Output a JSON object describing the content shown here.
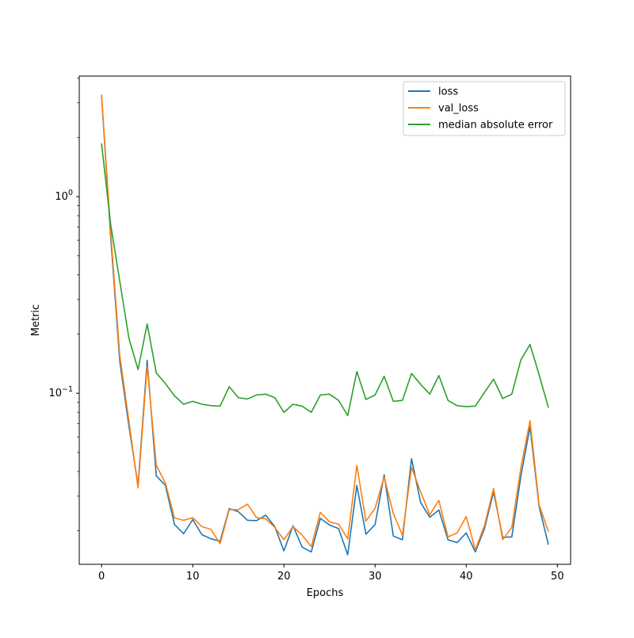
{
  "chart_data": {
    "type": "line",
    "xlabel": "Epochs",
    "ylabel": "Metric",
    "y_scale": "log",
    "xlim": [
      -2.45,
      51.45
    ],
    "ylim": [
      0.0135,
      4.1
    ],
    "x_ticks": [
      0,
      10,
      20,
      30,
      40,
      50
    ],
    "y_ticks": [
      {
        "value": 0.1,
        "base": "10",
        "exponent": "−1"
      },
      {
        "value": 1,
        "base": "10",
        "exponent": "0"
      }
    ],
    "grid": false,
    "legend_position": "top-right",
    "x": [
      0,
      1,
      2,
      3,
      4,
      5,
      6,
      7,
      8,
      9,
      10,
      11,
      12,
      13,
      14,
      15,
      16,
      17,
      18,
      19,
      20,
      21,
      22,
      23,
      24,
      25,
      26,
      27,
      28,
      29,
      30,
      31,
      32,
      33,
      34,
      35,
      36,
      37,
      38,
      39,
      40,
      41,
      42,
      43,
      44,
      45,
      46,
      47,
      48,
      49
    ],
    "series": [
      {
        "name": "loss",
        "color": "#1f77b4",
        "values": [
          3.25,
          0.62,
          0.145,
          0.068,
          0.034,
          0.147,
          0.038,
          0.034,
          0.0215,
          0.0193,
          0.0228,
          0.0191,
          0.0182,
          0.0177,
          0.0259,
          0.025,
          0.0226,
          0.0225,
          0.024,
          0.021,
          0.0158,
          0.0212,
          0.0165,
          0.0156,
          0.0231,
          0.0214,
          0.0205,
          0.0151,
          0.034,
          0.0192,
          0.0215,
          0.0385,
          0.0188,
          0.018,
          0.0465,
          0.0278,
          0.0234,
          0.0255,
          0.018,
          0.0174,
          0.0195,
          0.0156,
          0.0205,
          0.0315,
          0.0185,
          0.0186,
          0.038,
          0.0675,
          0.0265,
          0.0171
        ]
      },
      {
        "name": "val_loss",
        "color": "#ff7f0e",
        "values": [
          3.28,
          0.66,
          0.155,
          0.072,
          0.033,
          0.138,
          0.043,
          0.035,
          0.0232,
          0.0226,
          0.0233,
          0.021,
          0.0203,
          0.0172,
          0.0256,
          0.0256,
          0.0273,
          0.0233,
          0.023,
          0.0208,
          0.018,
          0.021,
          0.019,
          0.0166,
          0.0248,
          0.0222,
          0.0216,
          0.0182,
          0.043,
          0.0224,
          0.026,
          0.0375,
          0.0245,
          0.019,
          0.042,
          0.0315,
          0.0241,
          0.0285,
          0.0186,
          0.0195,
          0.0236,
          0.016,
          0.0212,
          0.0328,
          0.018,
          0.0208,
          0.042,
          0.0725,
          0.027,
          0.0199
        ]
      },
      {
        "name": "median absolute error",
        "color": "#2ca02c",
        "values": [
          1.85,
          0.72,
          0.37,
          0.19,
          0.132,
          0.225,
          0.127,
          0.112,
          0.097,
          0.088,
          0.091,
          0.088,
          0.0865,
          0.086,
          0.108,
          0.095,
          0.0935,
          0.098,
          0.099,
          0.095,
          0.08,
          0.088,
          0.086,
          0.08,
          0.098,
          0.099,
          0.092,
          0.077,
          0.129,
          0.093,
          0.098,
          0.122,
          0.091,
          0.092,
          0.126,
          0.111,
          0.099,
          0.123,
          0.092,
          0.0865,
          0.0855,
          0.086,
          0.101,
          0.118,
          0.094,
          0.099,
          0.148,
          0.177,
          0.124,
          0.085
        ]
      }
    ]
  }
}
